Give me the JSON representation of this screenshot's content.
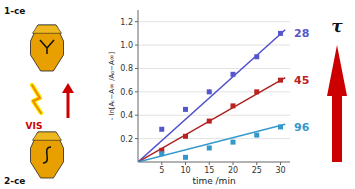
{
  "chart_data": {
    "type": "scatter",
    "xlabel": "time /min",
    "ylabel": "- ln[Aₜ−A∞ /A₀−A∞]",
    "xlim": [
      0,
      32
    ],
    "ylim": [
      0,
      1.3
    ],
    "xticks": [
      5,
      10,
      15,
      20,
      25,
      30
    ],
    "yticks": [
      0.2,
      0.4,
      0.6,
      0.8,
      {
        "value": 1.0,
        "label": "1.0"
      },
      1.2
    ],
    "grid": true,
    "series": [
      {
        "type": "line",
        "color": "#5050cc",
        "x": [
          0,
          31
        ],
        "values": [
          0,
          1.1315
        ]
      },
      {
        "type": "scatter",
        "name": "28",
        "color": "#5555cc",
        "marker": "square",
        "x": [
          5,
          10,
          15,
          20,
          25,
          30
        ],
        "values": [
          0.28,
          0.45,
          0.6,
          0.75,
          0.9,
          1.1
        ]
      },
      {
        "type": "line",
        "color": "#aa2020",
        "x": [
          0,
          31
        ],
        "values": [
          0,
          0.7223
        ]
      },
      {
        "type": "scatter",
        "name": "45",
        "color": "#bb2222",
        "marker": "square",
        "x": [
          5,
          10,
          15,
          20,
          25,
          30
        ],
        "values": [
          0.1,
          0.22,
          0.35,
          0.48,
          0.6,
          0.7
        ]
      },
      {
        "type": "line",
        "color": "#3399cc",
        "x": [
          0,
          31
        ],
        "values": [
          0,
          0.3224
        ]
      },
      {
        "type": "scatter",
        "name": "96",
        "color": "#3399cc",
        "marker": "square",
        "x": [
          5,
          10,
          15,
          20,
          25,
          30
        ],
        "values": [
          0.07,
          0.04,
          0.12,
          0.17,
          0.23,
          0.3
        ]
      }
    ],
    "annotations": [
      {
        "text": "1-ce"
      },
      {
        "text": "2-ce"
      },
      {
        "text": "VIS",
        "color": "#cc0000"
      },
      {
        "text": "τ"
      }
    ]
  }
}
